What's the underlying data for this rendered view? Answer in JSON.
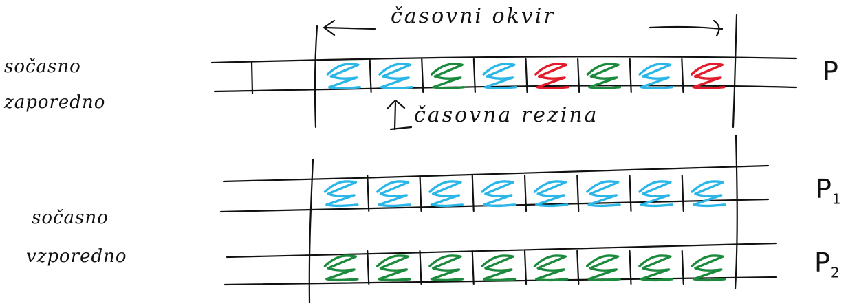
{
  "colors": {
    "blue": "#2bb6e8",
    "green": "#1b8a3c",
    "red": "#e31c2c",
    "ink": "#111111"
  },
  "labels": {
    "time_window": "časovni okvir",
    "time_slice": "časovna rezina",
    "concurrent_sequential": [
      "sočasno",
      "zaporedno"
    ],
    "concurrent_parallel": [
      "sočasno",
      "vzporedno"
    ],
    "processor": "P",
    "processor_1": {
      "base": "P",
      "sub": "1"
    },
    "processor_2": {
      "base": "P",
      "sub": "2"
    }
  },
  "timelines": {
    "sequential": {
      "slice_count": 8,
      "slices": [
        "blue",
        "blue",
        "green",
        "blue",
        "red",
        "green",
        "blue",
        "red"
      ]
    },
    "parallel_p1": {
      "slice_count": 8,
      "slices": [
        "blue",
        "blue",
        "blue",
        "blue",
        "blue",
        "blue",
        "blue",
        "blue"
      ]
    },
    "parallel_p2": {
      "slice_count": 8,
      "slices": [
        "green",
        "green",
        "green",
        "green",
        "green",
        "green",
        "green",
        "green"
      ]
    }
  }
}
